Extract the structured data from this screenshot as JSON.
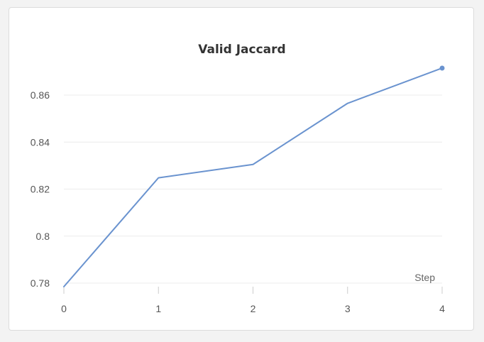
{
  "chart_data": {
    "type": "line",
    "title": "Valid Jaccard",
    "xlabel": "Step",
    "ylabel": "",
    "x": [
      0,
      1,
      2,
      3,
      4
    ],
    "series": [
      {
        "values": [
          0.7785,
          0.8248,
          0.8305,
          0.8565,
          0.8715
        ],
        "color": "#6a93cf"
      }
    ],
    "xticks": [
      "0",
      "1",
      "2",
      "3",
      "4"
    ],
    "yticks": [
      0.78,
      0.8,
      0.82,
      0.84,
      0.86
    ],
    "ytick_labels": [
      "0.78",
      "0.8",
      "0.82",
      "0.84",
      "0.86"
    ],
    "xlim": [
      0,
      4
    ],
    "ylim": [
      0.7785,
      0.873
    ],
    "grid": "horizontal",
    "last_point_marker": true
  }
}
